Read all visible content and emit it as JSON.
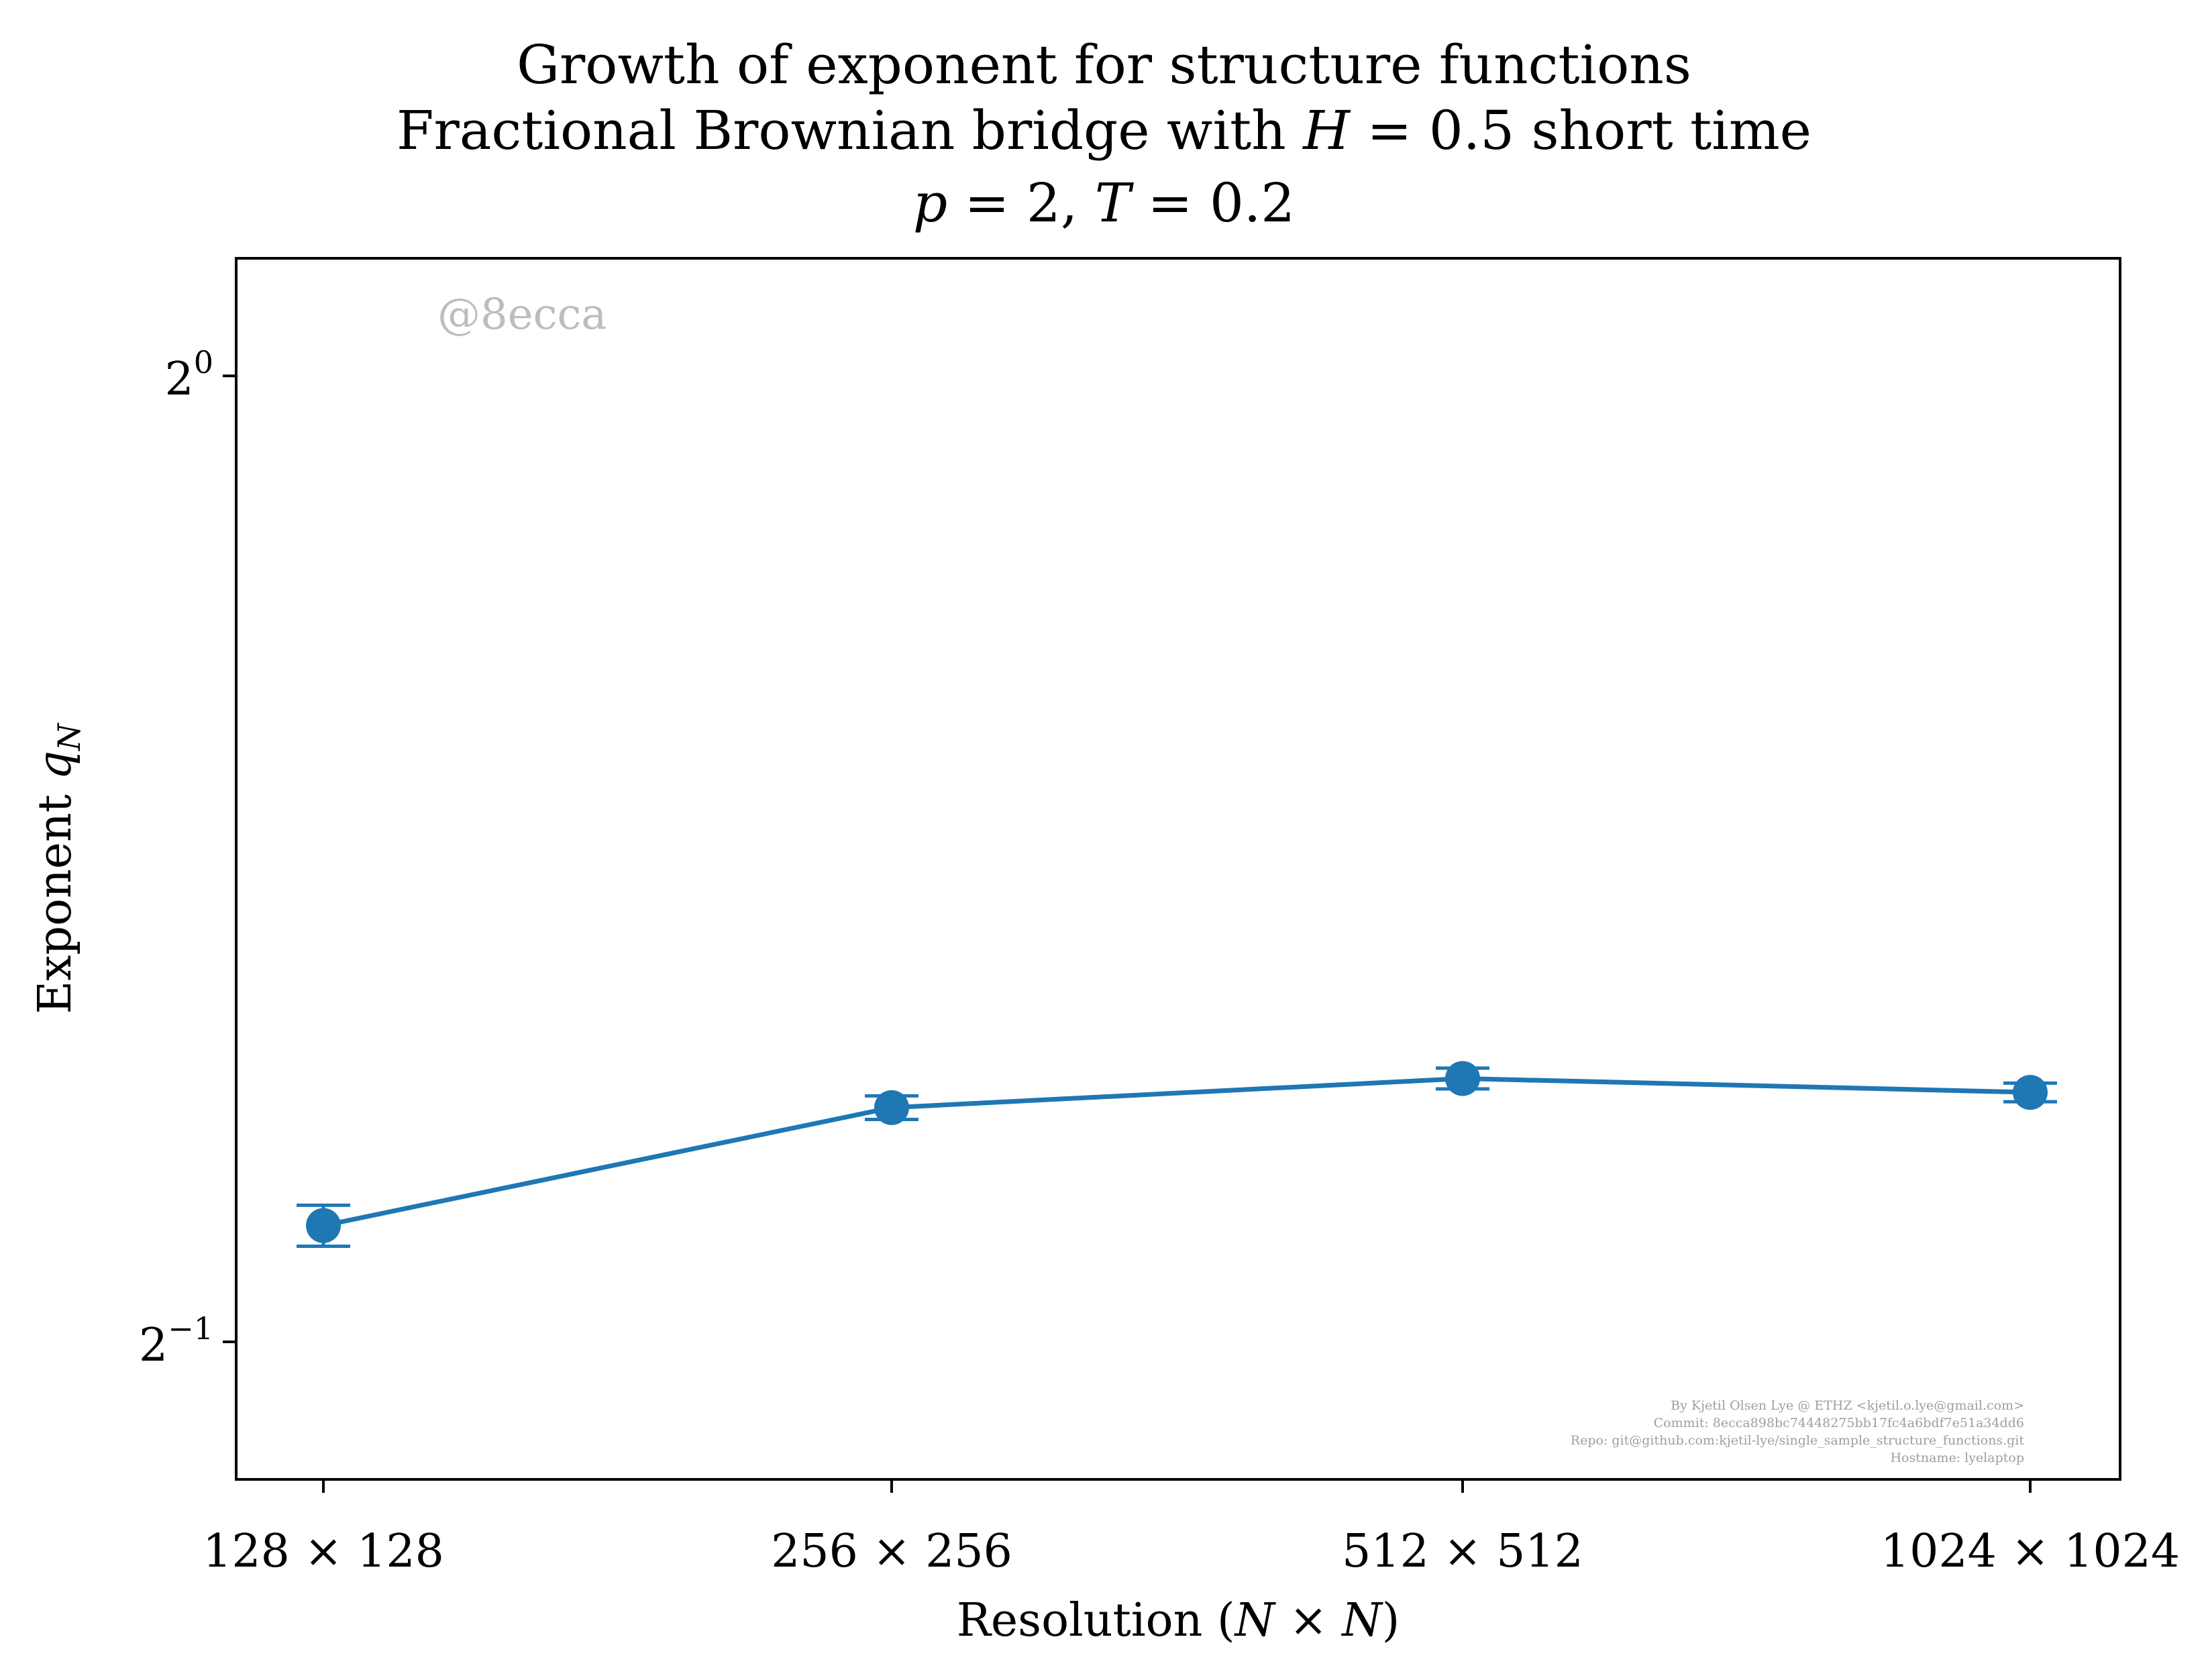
{
  "title": {
    "line1": "Growth of exponent for structure functions",
    "line2_pre": "Fractional Brownian bridge with ",
    "line2_var": "H",
    "line2_post": " = 0.5 short time",
    "line3_p": "p",
    "line3_mid": " = 2, ",
    "line3_T": "T",
    "line3_post": " = 0.2"
  },
  "chart_data": {
    "type": "line",
    "title": "Growth of exponent for structure functions / Fractional Brownian bridge with H = 0.5 short time / p = 2, T = 0.2",
    "xlabel": "Resolution (N × N)",
    "ylabel": "Exponent q_N",
    "categories": [
      "128 × 128",
      "256 × 256",
      "512 × 512",
      "1024 × 1024"
    ],
    "y_scale": "log2",
    "ylim": [
      0.453,
      1.088
    ],
    "yticks": [
      {
        "value": 1.0,
        "base": "2",
        "exp": "0"
      },
      {
        "value": 0.5,
        "base": "2",
        "exp": "−1"
      }
    ],
    "series": [
      {
        "values": [
          0.5435,
          0.5915,
          0.604,
          0.598
        ],
        "errors": [
          0.008,
          0.005,
          0.0045,
          0.004
        ],
        "color": "#1f77b4",
        "marker": "circle"
      }
    ],
    "grid": false
  },
  "watermark": "@8ecca",
  "credit": [
    "By Kjetil Olsen Lye @ ETHZ <kjetil.o.lye@gmail.com>",
    "Commit: 8ecca898bc74448275bb17fc4a6bdf7e51a34dd6",
    "Repo: git@github.com:kjetil-lye/single_sample_structure_functions.git",
    "Hostname: lyelaptop"
  ],
  "axis_labels": {
    "x_pre": "Resolution (",
    "x_N1": "N",
    "x_times": " × ",
    "x_N2": "N",
    "x_post": ")",
    "y_text": "Exponent ",
    "y_q": "q",
    "y_sub": "N"
  }
}
